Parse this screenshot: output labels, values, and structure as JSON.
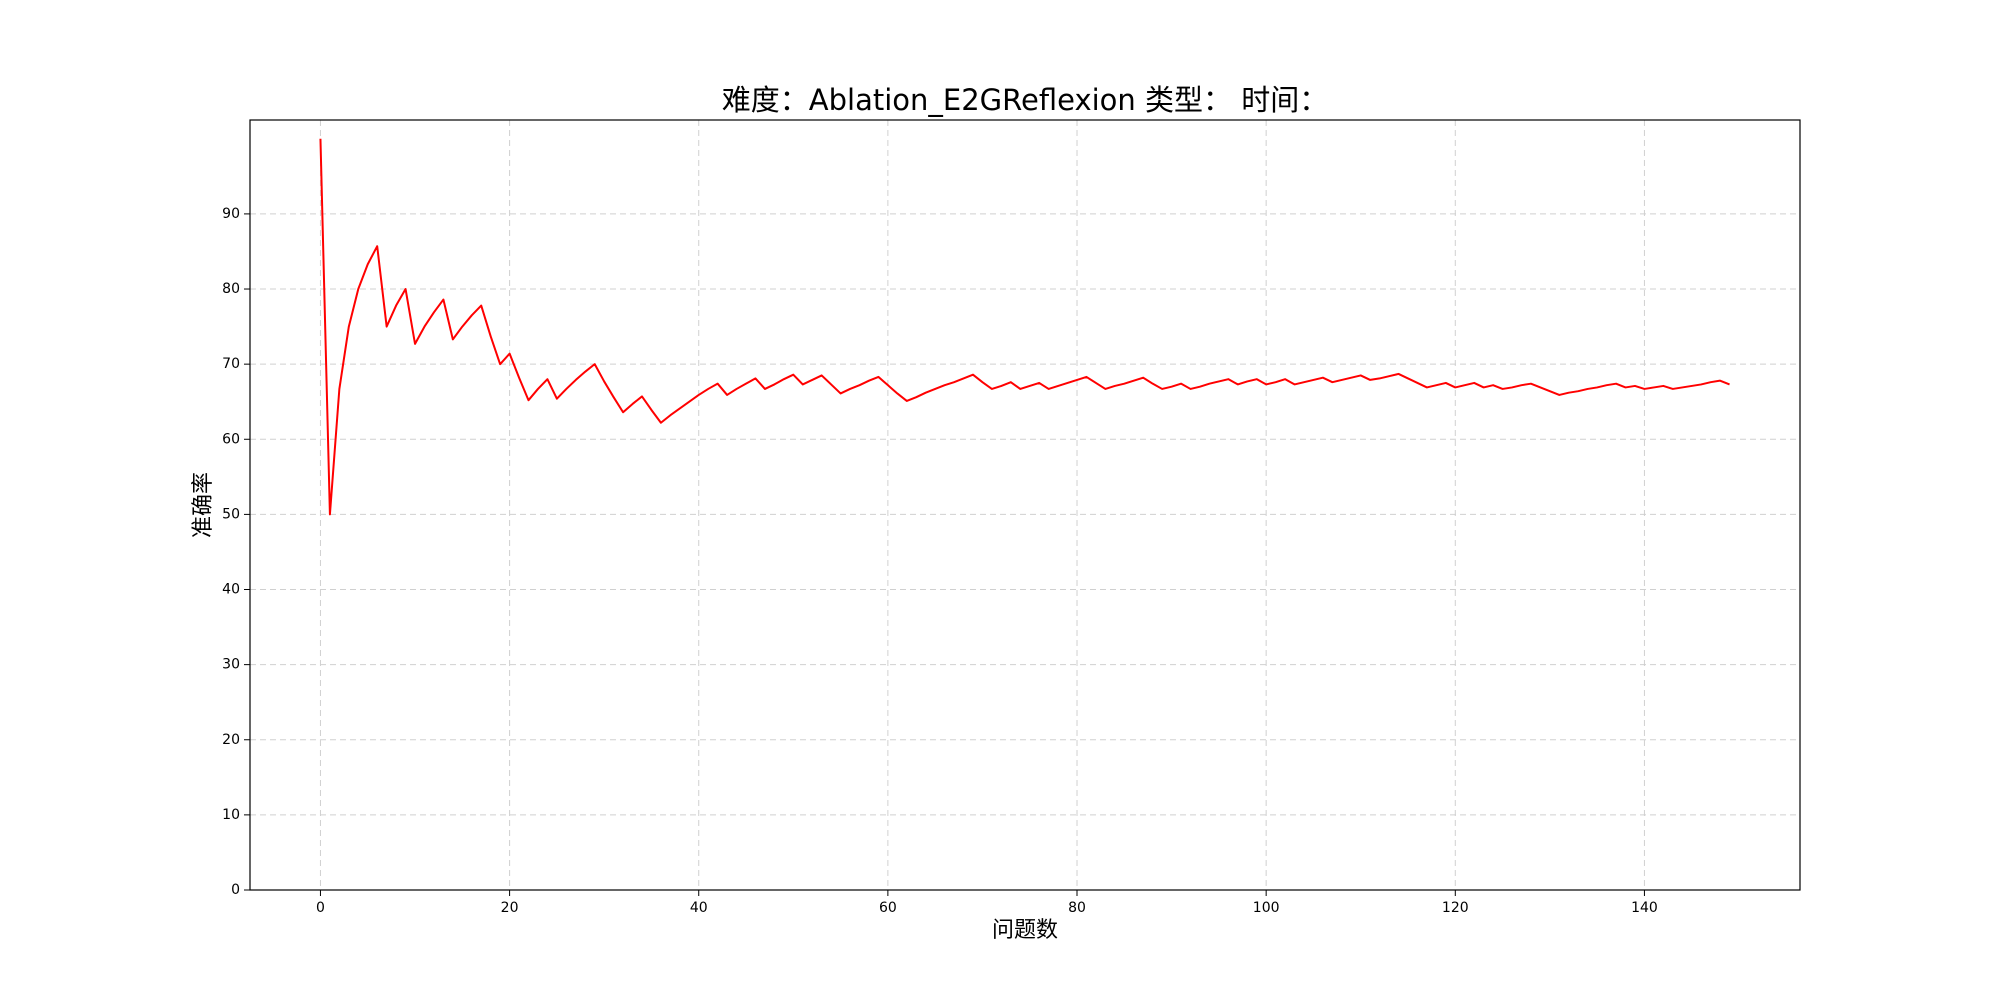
{
  "chart_data": {
    "type": "line",
    "title": "难度：Ablation_E2GReflexion 类型： 时间：",
    "x_label": "问题数",
    "y_label": "准确率",
    "x": [
      0,
      1,
      2,
      3,
      4,
      5,
      6,
      7,
      8,
      9,
      10,
      11,
      12,
      13,
      14,
      15,
      16,
      17,
      18,
      19,
      20,
      21,
      22,
      23,
      24,
      25,
      26,
      27,
      28,
      29,
      30,
      31,
      32,
      33,
      34,
      35,
      36,
      37,
      38,
      39,
      40,
      41,
      42,
      43,
      44,
      45,
      46,
      47,
      48,
      49,
      50,
      51,
      52,
      53,
      54,
      55,
      56,
      57,
      58,
      59,
      60,
      61,
      62,
      63,
      64,
      65,
      66,
      67,
      68,
      69,
      70,
      71,
      72,
      73,
      74,
      75,
      76,
      77,
      78,
      79,
      80,
      81,
      82,
      83,
      84,
      85,
      86,
      87,
      88,
      89,
      90,
      91,
      92,
      93,
      94,
      95,
      96,
      97,
      98,
      99,
      100,
      101,
      102,
      103,
      104,
      105,
      106,
      107,
      108,
      109,
      110,
      111,
      112,
      113,
      114,
      115,
      116,
      117,
      118,
      119,
      120,
      121,
      122,
      123,
      124,
      125,
      126,
      127,
      128,
      129,
      130,
      131,
      132,
      133,
      134,
      135,
      136,
      137,
      138,
      139,
      140,
      141,
      142,
      143,
      144,
      145,
      146,
      147,
      148,
      149
    ],
    "series": [
      {
        "color": "#ff0000",
        "values": [
          100,
          50,
          66.7,
          75,
          80,
          83.3,
          85.7,
          75,
          77.8,
          80,
          72.7,
          75,
          76.9,
          78.6,
          73.3,
          75,
          76.5,
          77.8,
          73.7,
          70,
          71.4,
          68.2,
          65.2,
          66.7,
          68,
          65.4,
          66.7,
          67.9,
          69,
          70,
          67.7,
          65.6,
          63.6,
          64.7,
          65.7,
          63.9,
          62.2,
          63.2,
          64.1,
          65,
          65.9,
          66.7,
          67.4,
          65.9,
          66.7,
          67.4,
          68.1,
          66.7,
          67.3,
          68,
          68.6,
          67.3,
          67.9,
          68.5,
          67.3,
          66.1,
          66.7,
          67.2,
          67.8,
          68.3,
          67.2,
          66.1,
          65.1,
          65.6,
          66.2,
          66.7,
          67.2,
          67.6,
          68.1,
          68.6,
          67.6,
          66.7,
          67.1,
          67.6,
          66.7,
          67.1,
          67.5,
          66.7,
          67.1,
          67.5,
          67.9,
          68.3,
          67.5,
          66.7,
          67.1,
          67.4,
          67.8,
          68.2,
          67.4,
          66.7,
          67,
          67.4,
          66.7,
          67,
          67.4,
          67.7,
          68,
          67.3,
          67.7,
          68,
          67.3,
          67.6,
          68,
          67.3,
          67.6,
          67.9,
          68.2,
          67.6,
          67.9,
          68.2,
          68.5,
          67.9,
          68.1,
          68.4,
          68.7,
          68.1,
          67.5,
          66.9,
          67.2,
          67.5,
          66.9,
          67.2,
          67.5,
          66.9,
          67.2,
          66.7,
          66.9,
          67.2,
          67.4,
          66.9,
          66.4,
          65.9,
          66.2,
          66.4,
          66.7,
          66.9,
          67.2,
          67.4,
          66.9,
          67.1,
          66.7,
          66.9,
          67.1,
          66.7,
          66.9,
          67.1,
          67.3,
          67.6,
          67.8,
          67.3
        ]
      }
    ],
    "xlim": [
      -7.45,
      156.45
    ],
    "ylim": [
      0,
      102.5
    ],
    "xticks": [
      0,
      20,
      40,
      60,
      80,
      100,
      120,
      140
    ],
    "yticks": [
      0,
      10,
      20,
      30,
      40,
      50,
      60,
      70,
      80,
      90
    ],
    "grid": true
  }
}
